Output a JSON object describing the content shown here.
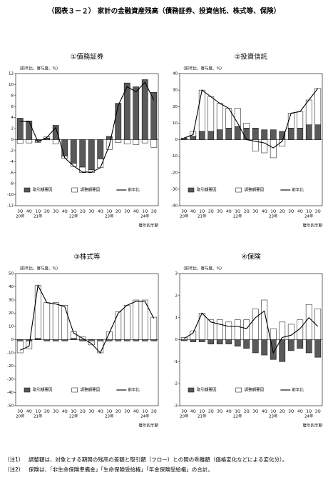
{
  "title": "（図表３－２） 家計の金融資産残高（債務証券、投資信託、株式等、保険）",
  "chart_data": [
    {
      "type": "combo",
      "title": "①債務証券",
      "y_label": "（前年比、寄与度、％）",
      "x_label": "暦年四半期",
      "categories": [
        "3Q",
        "4Q",
        "1Q",
        "2Q",
        "3Q",
        "4Q",
        "1Q",
        "2Q",
        "3Q",
        "4Q",
        "1Q",
        "2Q",
        "3Q",
        "4Q",
        "1Q",
        "2Q"
      ],
      "years": [
        "20年",
        null,
        "21年",
        null,
        null,
        null,
        "22年",
        null,
        null,
        null,
        "23年",
        null,
        null,
        null,
        "24年",
        null
      ],
      "ylim": [
        -12,
        12
      ],
      "yticks": [
        -12,
        -10,
        -8,
        -6,
        -4,
        -2,
        0,
        2,
        4,
        6,
        8,
        10,
        12
      ],
      "legend": "lower center",
      "series": [
        {
          "name": "取引額要因",
          "type": "bar",
          "color": "#595959",
          "values": [
            3.9,
            3.4,
            -0.3,
            0.3,
            2.6,
            -3.0,
            -4.3,
            -5.0,
            -5.5,
            -3.5,
            0.6,
            6.6,
            10.3,
            9.6,
            10.9,
            8.6
          ]
        },
        {
          "name": "調整額要因",
          "type": "bar",
          "color": "#ffffff",
          "values": [
            -0.7,
            -0.6,
            -0.2,
            0.2,
            -0.8,
            -0.4,
            -0.6,
            -1.0,
            -0.5,
            -1.6,
            -1.8,
            -0.5,
            -0.8,
            -0.9,
            -0.6,
            -1.4
          ]
        },
        {
          "name": "前年比",
          "type": "line",
          "color": "#000000",
          "values": [
            3.3,
            3.3,
            -0.4,
            0.4,
            2.2,
            -3.3,
            -4.8,
            -5.9,
            -5.9,
            -5.1,
            -1.1,
            6.2,
            9.6,
            8.7,
            10.4,
            7.2
          ]
        }
      ]
    },
    {
      "type": "combo",
      "title": "②投資信託",
      "y_label": "（前年比、寄与度、％）",
      "x_label": "暦年四半期",
      "categories": [
        "3Q",
        "4Q",
        "1Q",
        "2Q",
        "3Q",
        "4Q",
        "1Q",
        "2Q",
        "3Q",
        "4Q",
        "1Q",
        "2Q",
        "3Q",
        "4Q",
        "1Q",
        "2Q"
      ],
      "years": [
        "20年",
        null,
        "21年",
        null,
        null,
        null,
        "22年",
        null,
        null,
        null,
        "23年",
        null,
        null,
        null,
        "24年",
        null
      ],
      "ylim": [
        -40,
        40
      ],
      "yticks": [
        -40,
        -30,
        -20,
        -10,
        0,
        10,
        20,
        30,
        40
      ],
      "legend": "lower center",
      "series": [
        {
          "name": "取引額要因",
          "type": "bar",
          "color": "#595959",
          "values": [
            1,
            2,
            5,
            5,
            6,
            7,
            8,
            7,
            7,
            6,
            6,
            5,
            7,
            7,
            9,
            9
          ]
        },
        {
          "name": "調整額要因",
          "type": "bar",
          "color": "#ffffff",
          "values": [
            0,
            3,
            25,
            21,
            16,
            12,
            11,
            3,
            -7,
            -8,
            -11,
            -4,
            9,
            10,
            15,
            22
          ]
        },
        {
          "name": "前年比",
          "type": "line",
          "color": "#000000",
          "values": [
            1,
            3,
            30,
            26,
            22,
            19,
            10,
            0,
            -1,
            -2,
            -5,
            -1,
            16,
            17,
            24,
            31
          ]
        }
      ]
    },
    {
      "type": "combo",
      "title": "③株式等",
      "y_label": "（前年比、寄与度、％）",
      "x_label": "暦年四半期",
      "categories": [
        "3Q",
        "4Q",
        "1Q",
        "2Q",
        "3Q",
        "4Q",
        "1Q",
        "2Q",
        "3Q",
        "4Q",
        "1Q",
        "2Q",
        "3Q",
        "4Q",
        "1Q",
        "2Q"
      ],
      "years": [
        "20年",
        null,
        "21年",
        null,
        null,
        null,
        "22年",
        null,
        null,
        null,
        "23年",
        null,
        null,
        null,
        "24年",
        null
      ],
      "ylim": [
        -50,
        50
      ],
      "yticks": [
        -50,
        -40,
        -30,
        -20,
        -10,
        0,
        10,
        20,
        30,
        40,
        50
      ],
      "legend": "lower center",
      "series": [
        {
          "name": "取引額要因",
          "type": "bar",
          "color": "#595959",
          "values": [
            -1,
            -1,
            1,
            -1,
            -1,
            -1,
            1,
            -1,
            -1,
            -1,
            -1,
            -1,
            -1,
            -1,
            -1,
            -1
          ]
        },
        {
          "name": "調整額要因",
          "type": "bar",
          "color": "#ffffff",
          "values": [
            -9,
            -6,
            40,
            28,
            28,
            26,
            5,
            2,
            -3,
            -9,
            6,
            21,
            26,
            30,
            30,
            17
          ]
        },
        {
          "name": "前年比",
          "type": "line",
          "color": "#000000",
          "values": [
            -8,
            -5,
            41,
            28,
            27,
            25,
            5,
            1,
            -3,
            -10,
            5,
            20,
            26,
            29,
            29,
            16
          ]
        }
      ]
    },
    {
      "type": "combo",
      "title": "④保険",
      "y_label": "（前年比、寄与度、％）",
      "x_label": "暦年四半期",
      "categories": [
        "3Q",
        "4Q",
        "1Q",
        "2Q",
        "3Q",
        "4Q",
        "1Q",
        "2Q",
        "3Q",
        "4Q",
        "1Q",
        "2Q",
        "3Q",
        "4Q",
        "1Q",
        "2Q"
      ],
      "years": [
        "20年",
        null,
        "21年",
        null,
        null,
        null,
        "22年",
        null,
        null,
        null,
        "23年",
        null,
        null,
        null,
        "24年",
        null
      ],
      "ylim": [
        -3,
        3
      ],
      "yticks": [
        -3,
        -2,
        -1,
        0,
        1,
        2,
        3
      ],
      "legend": "lower center",
      "series": [
        {
          "name": "取引額要因",
          "type": "bar",
          "color": "#595959",
          "values": [
            -0.05,
            -0.1,
            -0.1,
            -0.2,
            -0.2,
            -0.2,
            -0.3,
            -0.4,
            -0.6,
            -0.7,
            -0.9,
            -1.0,
            -0.5,
            -0.4,
            -0.6,
            -0.8
          ]
        },
        {
          "name": "調整額要因",
          "type": "bar",
          "color": "#ffffff",
          "values": [
            0.1,
            0.4,
            1.2,
            0.9,
            0.9,
            0.8,
            0.9,
            0.9,
            1.4,
            1.8,
            0.5,
            0.8,
            0.7,
            0.9,
            1.6,
            1.4
          ]
        },
        {
          "name": "前年比",
          "type": "line",
          "color": "#000000",
          "values": [
            0.05,
            0.3,
            1.2,
            0.8,
            0.7,
            0.6,
            0.6,
            0.5,
            1.0,
            1.3,
            -0.6,
            0.1,
            0.2,
            0.5,
            1.0,
            0.6
          ]
        }
      ]
    }
  ],
  "notes": [
    [
      "（注1）",
      "調整額は、対象とする期間の残高の差額と取引額（フロー）との間の乖離額（価格変化などによる変化分）。"
    ],
    [
      "（注2）",
      "保険は、「非生命保険準備金」「生命保険受給権」「年金保険受給権」の合計。"
    ]
  ]
}
